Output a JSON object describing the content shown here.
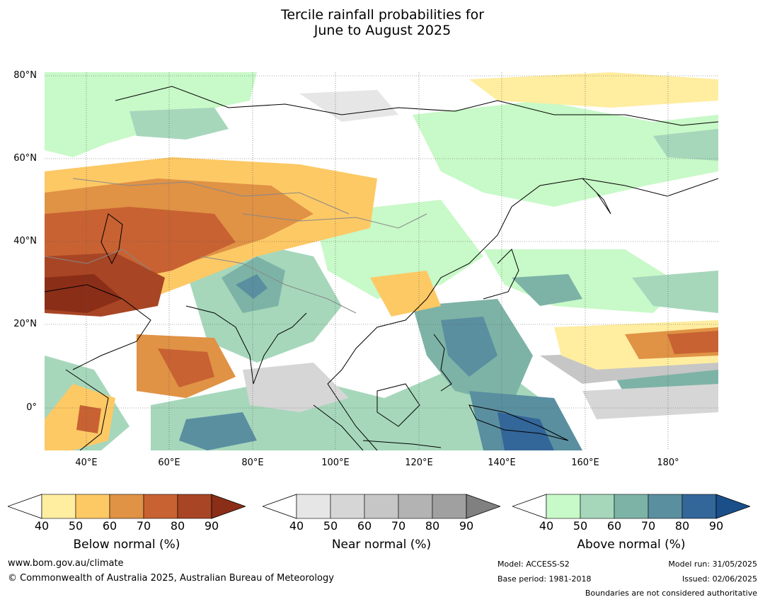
{
  "title": {
    "line1": "Tercile rainfall probabilities for",
    "line2": "June to August 2025"
  },
  "map": {
    "lat_labels": [
      "80°N",
      "60°N",
      "40°N",
      "20°N",
      "0°"
    ],
    "lon_labels": [
      "40°E",
      "60°E",
      "80°E",
      "100°E",
      "120°E",
      "140°E",
      "160°E",
      "180°"
    ]
  },
  "colorbars": [
    {
      "label": "Below normal (%)",
      "ticks": [
        "40",
        "50",
        "60",
        "70",
        "80",
        "90"
      ],
      "colors": [
        "#ffffff",
        "#ffeda0",
        "#fdc965",
        "#e09245",
        "#c86232",
        "#a84524",
        "#8b2e18"
      ]
    },
    {
      "label": "Near normal (%)",
      "ticks": [
        "40",
        "50",
        "60",
        "70",
        "80",
        "90"
      ],
      "colors": [
        "#ffffff",
        "#e6e6e6",
        "#d6d6d6",
        "#c6c6c6",
        "#b3b3b3",
        "#a0a0a0",
        "#808080"
      ]
    },
    {
      "label": "Above normal (%)",
      "ticks": [
        "40",
        "50",
        "60",
        "70",
        "80",
        "90"
      ],
      "colors": [
        "#ffffff",
        "#c8f9c8",
        "#a6d7bb",
        "#7db3a6",
        "#5a8fa0",
        "#336699",
        "#1a4f8a"
      ]
    }
  ],
  "footer": {
    "website": "www.bom.gov.au/climate",
    "copyright": "© Commonwealth of Australia 2025, Australian Bureau of Meteorology",
    "model": "Model: ACCESS-S2",
    "base_period": "Base period: 1981-2018",
    "model_run": "Model run: 31/05/2025",
    "issued": "Issued: 02/06/2025",
    "disclaimer": "Boundaries are not considered authoritative"
  }
}
